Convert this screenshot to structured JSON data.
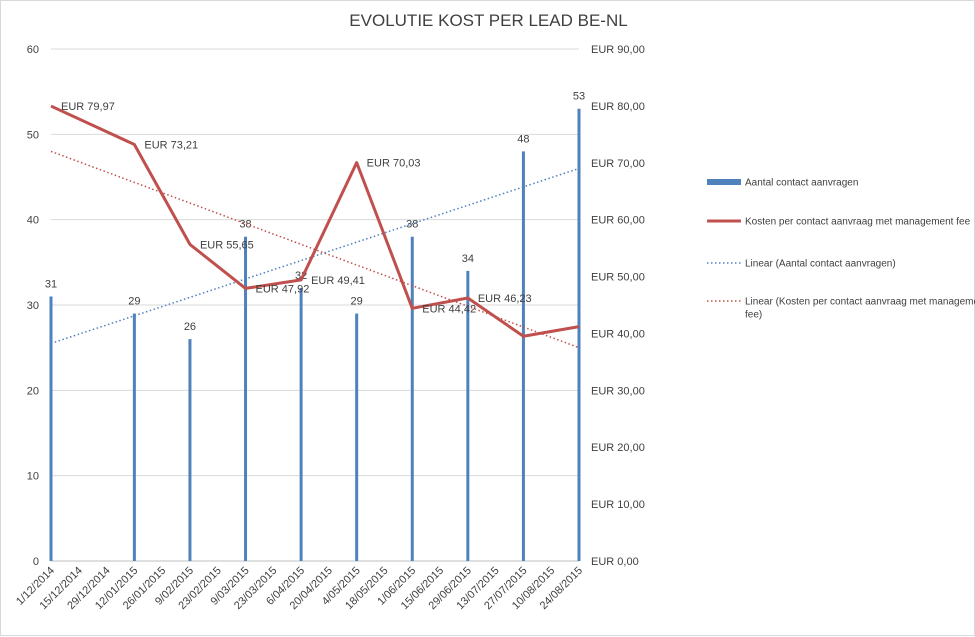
{
  "chart_data": {
    "type": "bar",
    "title": "EVOLUTIE KOST PER LEAD BE-NL",
    "categories": [
      "1/12/2014",
      "15/12/2014",
      "29/12/2014",
      "12/01/2015",
      "26/01/2015",
      "9/02/2015",
      "23/02/2015",
      "9/03/2015",
      "23/03/2015",
      "6/04/2015",
      "20/04/2015",
      "4/05/2015",
      "18/05/2015",
      "1/06/2015",
      "15/06/2015",
      "29/06/2015",
      "13/07/2015",
      "27/07/2015",
      "10/08/2015",
      "24/08/2015"
    ],
    "y_left": {
      "min": 0,
      "max": 60,
      "step": 10,
      "ticks": [
        "0",
        "10",
        "20",
        "30",
        "40",
        "50",
        "60"
      ]
    },
    "y_right": {
      "min": 0,
      "max": 90,
      "step": 10,
      "ticks": [
        "EUR 0,00",
        "EUR 10,00",
        "EUR 20,00",
        "EUR 30,00",
        "EUR 40,00",
        "EUR 50,00",
        "EUR 60,00",
        "EUR 70,00",
        "EUR 80,00",
        "EUR 90,00"
      ]
    },
    "grid": "horizontal",
    "legend_position": "right",
    "series": [
      {
        "name": "Aantal contact aanvragen",
        "kind": "bar",
        "axis": "left",
        "color": "#4f81bd",
        "points": [
          {
            "x": "1/12/2014",
            "y": 31,
            "label": "31"
          },
          {
            "x": "12/01/2015",
            "y": 29,
            "label": "29"
          },
          {
            "x": "9/02/2015",
            "y": 26,
            "label": "26"
          },
          {
            "x": "9/03/2015",
            "y": 38,
            "label": "38"
          },
          {
            "x": "6/04/2015",
            "y": 32,
            "label": "32"
          },
          {
            "x": "4/05/2015",
            "y": 29,
            "label": "29"
          },
          {
            "x": "1/06/2015",
            "y": 38,
            "label": "38"
          },
          {
            "x": "29/06/2015",
            "y": 34,
            "label": "34"
          },
          {
            "x": "27/07/2015",
            "y": 48,
            "label": "48"
          },
          {
            "x": "24/08/2015",
            "y": 53,
            "label": "53"
          }
        ]
      },
      {
        "name": "Kosten per contact aanvraag met management fee",
        "kind": "line",
        "axis": "right",
        "color": "#c0504d",
        "points": [
          {
            "x": "1/12/2014",
            "y": 79.97,
            "label": "EUR 79,97"
          },
          {
            "x": "12/01/2015",
            "y": 73.21,
            "label": "EUR 73,21"
          },
          {
            "x": "9/02/2015",
            "y": 55.65,
            "label": "EUR 55,65"
          },
          {
            "x": "9/03/2015",
            "y": 47.92,
            "label": "EUR 47,92"
          },
          {
            "x": "6/04/2015",
            "y": 49.41,
            "label": "EUR 49,41"
          },
          {
            "x": "4/05/2015",
            "y": 70.03,
            "label": "EUR 70,03"
          },
          {
            "x": "1/06/2015",
            "y": 44.42,
            "label": "EUR 44,42"
          },
          {
            "x": "29/06/2015",
            "y": 46.23,
            "label": "EUR 46,23"
          },
          {
            "x": "27/07/2015",
            "y": 39.5,
            "label": ""
          },
          {
            "x": "24/08/2015",
            "y": 41.2,
            "label": ""
          }
        ]
      },
      {
        "name": "Linear (Aantal contact aanvragen)",
        "kind": "trend",
        "axis": "left",
        "color": "#4f81bd",
        "points": [
          {
            "x": "1/12/2014",
            "y": 25.5
          },
          {
            "x": "24/08/2015",
            "y": 46
          }
        ]
      },
      {
        "name": "Linear (Kosten per contact aanvraag met management fee)",
        "kind": "trend",
        "axis": "right",
        "color": "#c0504d",
        "points": [
          {
            "x": "1/12/2014",
            "y": 72
          },
          {
            "x": "24/08/2015",
            "y": 37.5
          }
        ]
      }
    ]
  }
}
